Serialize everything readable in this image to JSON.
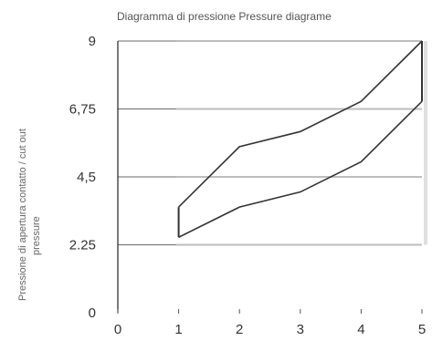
{
  "chart_data": {
    "type": "line",
    "title": "Diagramma di pressione  Pressure diagrame",
    "ylabel_lines": [
      "Pressione di apertura contatto / cut out",
      "pressure"
    ],
    "xlabel": "",
    "x": [
      1,
      2,
      3,
      4,
      5
    ],
    "xlim": [
      0,
      5
    ],
    "ylim": [
      0,
      9
    ],
    "x_ticks": [
      "0",
      "1",
      "2",
      "3",
      "4",
      "5"
    ],
    "y_ticks": [
      "0",
      "2.25",
      "4,5",
      "6,75",
      "9"
    ],
    "series": [
      {
        "values": [
          3.5,
          5.5,
          6.0,
          7.0,
          9.0
        ]
      },
      {
        "values": [
          2.5,
          3.5,
          4.0,
          5.0,
          7.0
        ]
      }
    ],
    "grid": true,
    "colors": {
      "line": "#333333",
      "grid": "#888888",
      "axis": "#222222"
    }
  }
}
